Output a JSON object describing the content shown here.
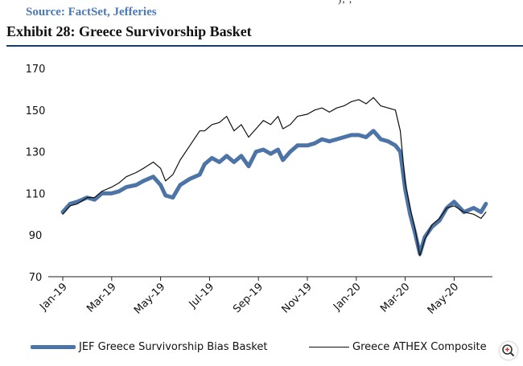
{
  "header": {
    "top_clipped_text": "), ,",
    "source": "Source: FactSet, Jefferies",
    "title": "Exhibit 28: Greece Survivorship Basket"
  },
  "chart_data": {
    "type": "line",
    "title": "Exhibit 28: Greece Survivorship Basket",
    "xlabel": "",
    "ylabel": "",
    "ylim": [
      70,
      170
    ],
    "yticks": [
      70,
      90,
      110,
      130,
      150,
      170
    ],
    "xlim": [
      0,
      17.5
    ],
    "xticks": [
      {
        "label": "Jan-19",
        "x": 0
      },
      {
        "label": "Mar-19",
        "x": 2
      },
      {
        "label": "May-19",
        "x": 4
      },
      {
        "label": "Jul-19",
        "x": 6
      },
      {
        "label": "Sep-19",
        "x": 8
      },
      {
        "label": "Nov-19",
        "x": 10
      },
      {
        "label": "Jan-20",
        "x": 12
      },
      {
        "label": "Mar-20",
        "x": 14
      },
      {
        "label": "May-20",
        "x": 16
      }
    ],
    "grid": false,
    "legend_position": "bottom",
    "series": [
      {
        "name": "JEF Greece Survivorship Bias Basket",
        "color": "#4d74a6",
        "width": "thick",
        "points": [
          [
            0,
            101
          ],
          [
            0.3,
            105
          ],
          [
            0.6,
            106
          ],
          [
            1.0,
            108
          ],
          [
            1.3,
            107
          ],
          [
            1.6,
            110
          ],
          [
            2.0,
            110
          ],
          [
            2.3,
            111
          ],
          [
            2.6,
            113
          ],
          [
            3.0,
            114
          ],
          [
            3.3,
            116
          ],
          [
            3.7,
            118
          ],
          [
            4.0,
            114
          ],
          [
            4.2,
            109
          ],
          [
            4.5,
            108
          ],
          [
            4.8,
            114
          ],
          [
            5.2,
            117
          ],
          [
            5.6,
            119
          ],
          [
            5.8,
            124
          ],
          [
            6.1,
            127
          ],
          [
            6.4,
            125
          ],
          [
            6.7,
            128
          ],
          [
            7.0,
            125
          ],
          [
            7.3,
            128
          ],
          [
            7.6,
            123
          ],
          [
            7.9,
            130
          ],
          [
            8.2,
            131
          ],
          [
            8.5,
            129
          ],
          [
            8.8,
            131
          ],
          [
            9.0,
            126
          ],
          [
            9.3,
            130
          ],
          [
            9.6,
            133
          ],
          [
            10.0,
            133
          ],
          [
            10.3,
            134
          ],
          [
            10.6,
            136
          ],
          [
            10.9,
            135
          ],
          [
            11.2,
            136
          ],
          [
            11.5,
            137
          ],
          [
            11.8,
            138
          ],
          [
            12.1,
            138
          ],
          [
            12.4,
            137
          ],
          [
            12.7,
            140
          ],
          [
            13.0,
            136
          ],
          [
            13.3,
            135
          ],
          [
            13.6,
            133
          ],
          [
            13.8,
            130
          ],
          [
            14.0,
            112
          ],
          [
            14.2,
            100
          ],
          [
            14.4,
            91
          ],
          [
            14.6,
            81
          ],
          [
            14.8,
            89
          ],
          [
            15.1,
            94
          ],
          [
            15.4,
            97
          ],
          [
            15.7,
            103
          ],
          [
            16.0,
            106
          ],
          [
            16.4,
            101
          ],
          [
            16.8,
            103
          ],
          [
            17.1,
            101
          ],
          [
            17.3,
            105
          ]
        ]
      },
      {
        "name": "Greece ATHEX Composite",
        "color": "#111111",
        "width": "thin",
        "points": [
          [
            0,
            100
          ],
          [
            0.3,
            104
          ],
          [
            0.6,
            105
          ],
          [
            1.0,
            108
          ],
          [
            1.3,
            108
          ],
          [
            1.6,
            111
          ],
          [
            2.0,
            113
          ],
          [
            2.3,
            115
          ],
          [
            2.6,
            118
          ],
          [
            3.0,
            120
          ],
          [
            3.3,
            122
          ],
          [
            3.7,
            125
          ],
          [
            4.0,
            122
          ],
          [
            4.2,
            116
          ],
          [
            4.5,
            119
          ],
          [
            4.8,
            126
          ],
          [
            5.2,
            133
          ],
          [
            5.6,
            140
          ],
          [
            5.8,
            140
          ],
          [
            6.1,
            143
          ],
          [
            6.4,
            144
          ],
          [
            6.7,
            147
          ],
          [
            7.0,
            140
          ],
          [
            7.3,
            143
          ],
          [
            7.6,
            137
          ],
          [
            7.9,
            141
          ],
          [
            8.2,
            145
          ],
          [
            8.5,
            143
          ],
          [
            8.8,
            147
          ],
          [
            9.0,
            141
          ],
          [
            9.3,
            143
          ],
          [
            9.6,
            147
          ],
          [
            10.0,
            148
          ],
          [
            10.3,
            150
          ],
          [
            10.6,
            151
          ],
          [
            10.9,
            149
          ],
          [
            11.2,
            151
          ],
          [
            11.5,
            152
          ],
          [
            11.8,
            154
          ],
          [
            12.1,
            155
          ],
          [
            12.4,
            153
          ],
          [
            12.7,
            156
          ],
          [
            13.0,
            152
          ],
          [
            13.3,
            151
          ],
          [
            13.6,
            150
          ],
          [
            13.8,
            140
          ],
          [
            14.0,
            115
          ],
          [
            14.2,
            103
          ],
          [
            14.4,
            93
          ],
          [
            14.6,
            80
          ],
          [
            14.8,
            88
          ],
          [
            15.1,
            95
          ],
          [
            15.4,
            98
          ],
          [
            15.7,
            103
          ],
          [
            16.0,
            104
          ],
          [
            16.4,
            101
          ],
          [
            16.8,
            100
          ],
          [
            17.1,
            98
          ],
          [
            17.3,
            101
          ]
        ]
      }
    ]
  },
  "legend": {
    "items": [
      {
        "label": "JEF Greece Survivorship Bias Basket"
      },
      {
        "label": "Greece ATHEX Composite"
      }
    ]
  },
  "icons": {
    "zoom": "zoom-in-icon"
  }
}
